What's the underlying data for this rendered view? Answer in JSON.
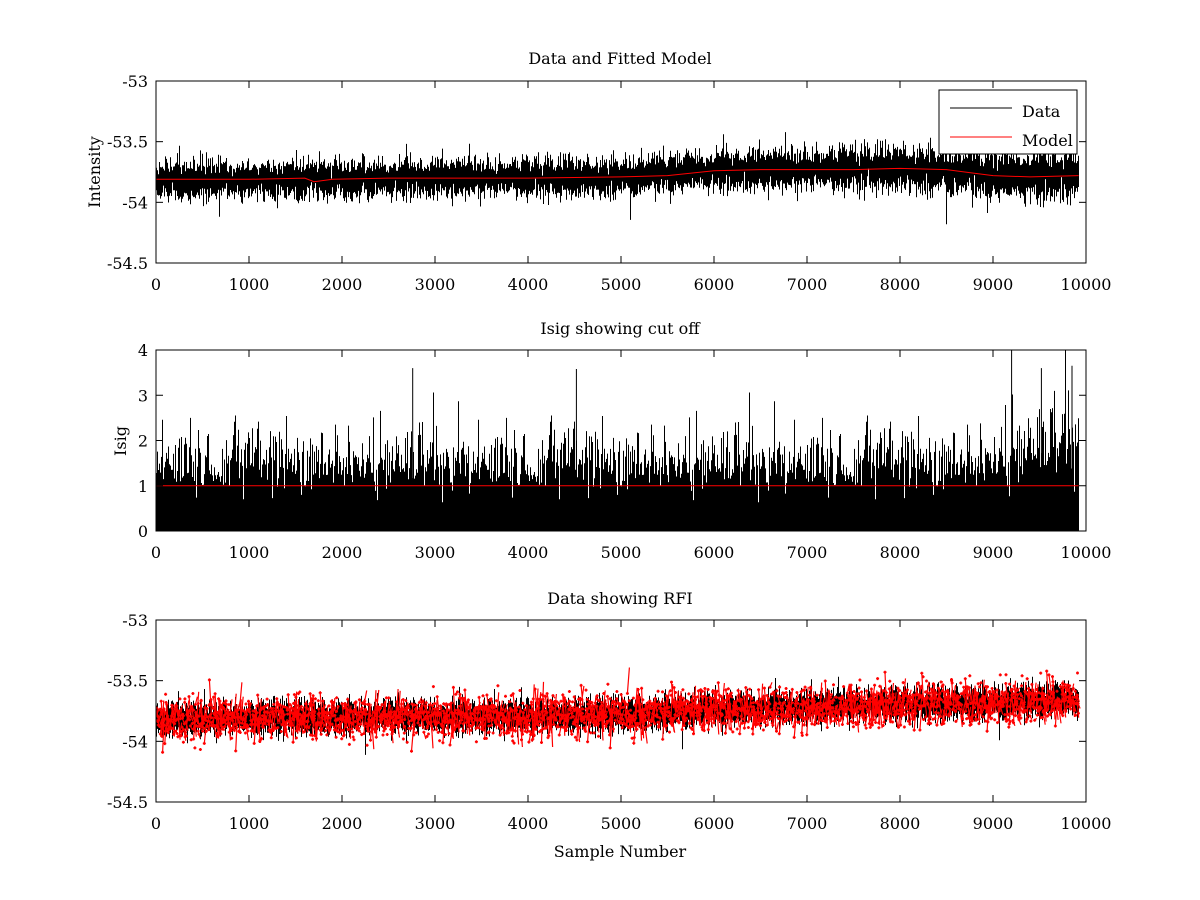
{
  "figure": {
    "background": "#ffffff",
    "xlabel_bottom": "Sample Number"
  },
  "chart_data": [
    {
      "type": "line",
      "title": "Data and Fitted Model",
      "xlabel": "",
      "ylabel": "Intensity",
      "xlim": [
        0,
        10000
      ],
      "ylim": [
        -54.5,
        -53
      ],
      "xticks": [
        0,
        1000,
        2000,
        3000,
        4000,
        5000,
        6000,
        7000,
        8000,
        9000,
        10000
      ],
      "yticks": [
        -54.5,
        -54,
        -53.5,
        -53
      ],
      "ytick_labels": [
        "-54.5",
        "-54",
        "-53.5",
        "-53"
      ],
      "legend": {
        "placement": "top-right",
        "entries": [
          "Data",
          "Model"
        ]
      },
      "series": [
        {
          "name": "Data",
          "color": "#000000",
          "style": "noisy-line",
          "x_range": [
            0,
            9920
          ],
          "n_points": 9920,
          "baseline": [
            [
              0,
              -53.82
            ],
            [
              2000,
              -53.81
            ],
            [
              5000,
              -53.79
            ],
            [
              6000,
              -53.74
            ],
            [
              7000,
              -53.73
            ],
            [
              8000,
              -53.72
            ],
            [
              8500,
              -53.74
            ],
            [
              9000,
              -53.78
            ],
            [
              9920,
              -53.78
            ]
          ],
          "noise_sigma": 0.075,
          "noise_growth_after_x": 5500,
          "noise_sigma_end": 0.1
        },
        {
          "name": "Model",
          "color": "#ff0000",
          "style": "line",
          "points": [
            [
              0,
              -53.81
            ],
            [
              1000,
              -53.81
            ],
            [
              1600,
              -53.8
            ],
            [
              1700,
              -53.83
            ],
            [
              1900,
              -53.81
            ],
            [
              2500,
              -53.8
            ],
            [
              3000,
              -53.8
            ],
            [
              4000,
              -53.8
            ],
            [
              5000,
              -53.79
            ],
            [
              5500,
              -53.78
            ],
            [
              6000,
              -53.74
            ],
            [
              6500,
              -53.73
            ],
            [
              7000,
              -53.73
            ],
            [
              7500,
              -53.73
            ],
            [
              8000,
              -53.72
            ],
            [
              8500,
              -53.73
            ],
            [
              8800,
              -53.76
            ],
            [
              9000,
              -53.78
            ],
            [
              9400,
              -53.79
            ],
            [
              9920,
              -53.78
            ]
          ]
        }
      ]
    },
    {
      "type": "line",
      "title": "Isig showing cut off",
      "xlabel": "",
      "ylabel": "Isig",
      "xlim": [
        0,
        10000
      ],
      "ylim": [
        0,
        4
      ],
      "xticks": [
        0,
        1000,
        2000,
        3000,
        4000,
        5000,
        6000,
        7000,
        8000,
        9000,
        10000
      ],
      "yticks": [
        0,
        1,
        2,
        3,
        4
      ],
      "ytick_labels": [
        "0",
        "1",
        "2",
        "3",
        "4"
      ],
      "series": [
        {
          "color": "#000000",
          "style": "noisy-line-abs",
          "x_range": [
            0,
            9920
          ],
          "n_points": 9920,
          "noise_sigma": 0.8,
          "noise_sigma_end": 1.1,
          "noise_growth_after_x": 8800,
          "peaks": [
            [
              2760,
              3.6
            ],
            [
              4520,
              3.58
            ],
            [
              9200,
              4.0
            ],
            [
              9850,
              3.65
            ],
            [
              9520,
              3.6
            ]
          ]
        },
        {
          "color": "#ff0000",
          "style": "hline",
          "y": 1.0,
          "x_range": [
            0,
            9920
          ]
        }
      ]
    },
    {
      "type": "scatter",
      "title": "Data showing RFI",
      "xlabel": "Sample Number",
      "ylabel": "",
      "xlim": [
        0,
        10000
      ],
      "ylim": [
        -54.5,
        -53
      ],
      "xticks": [
        0,
        1000,
        2000,
        3000,
        4000,
        5000,
        6000,
        7000,
        8000,
        9000,
        10000
      ],
      "yticks": [
        -54.5,
        -54,
        -53.5,
        -53
      ],
      "ytick_labels": [
        "-54.5",
        "-54",
        "-53.5",
        "-53"
      ],
      "series": [
        {
          "color": "#000000",
          "style": "noisy-line",
          "x_range": [
            0,
            9920
          ],
          "n_points": 9920,
          "baseline": [
            [
              0,
              -53.82
            ],
            [
              2000,
              -53.8
            ],
            [
              4000,
              -53.8
            ],
            [
              5000,
              -53.78
            ],
            [
              6000,
              -53.74
            ],
            [
              7000,
              -53.72
            ],
            [
              8000,
              -53.7
            ],
            [
              9000,
              -53.68
            ],
            [
              9920,
              -53.66
            ]
          ],
          "noise_sigma": 0.065
        },
        {
          "color": "#ff0000",
          "style": "markers",
          "marker": "dot",
          "x_range": [
            0,
            9920
          ],
          "n_points": 2600,
          "baseline": [
            [
              0,
              -53.82
            ],
            [
              2000,
              -53.8
            ],
            [
              4000,
              -53.8
            ],
            [
              5000,
              -53.78
            ],
            [
              6000,
              -53.74
            ],
            [
              7000,
              -53.72
            ],
            [
              8000,
              -53.7
            ],
            [
              9000,
              -53.68
            ],
            [
              9920,
              -53.66
            ]
          ],
          "noise_sigma": 0.09
        }
      ]
    }
  ]
}
